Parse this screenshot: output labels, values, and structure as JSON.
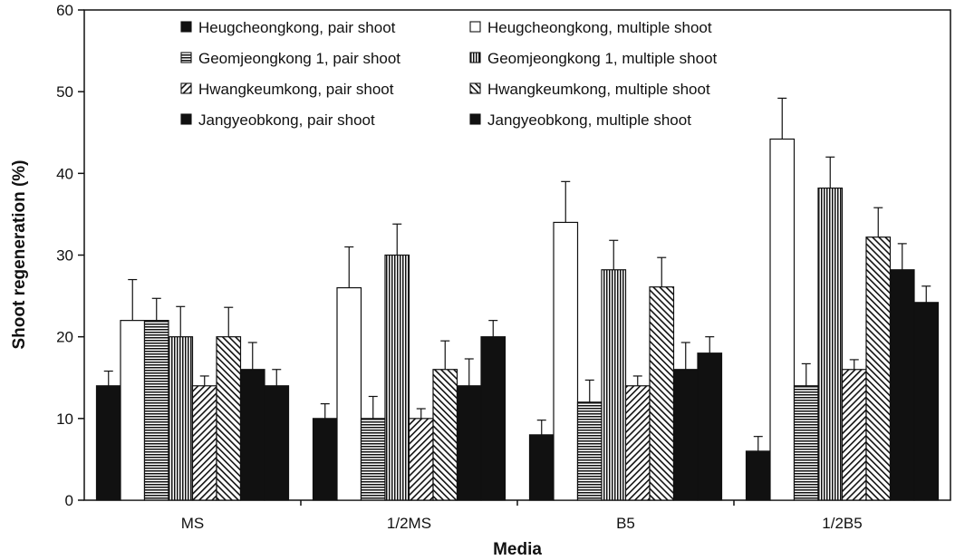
{
  "chart_data": {
    "type": "bar",
    "xlabel": "Media",
    "ylabel": "Shoot regeneration (%)",
    "ylim": [
      0,
      60
    ],
    "yticks": [
      "0",
      "10",
      "20",
      "30",
      "40",
      "50",
      "60"
    ],
    "categories": [
      "MS",
      "1/2MS",
      "B5",
      "1/2B5"
    ],
    "legend_position": "top-center",
    "grid": false,
    "series": [
      {
        "name": "Heugcheongkong, pair shoot",
        "pattern": "solid-black",
        "values": [
          14,
          10,
          8,
          6
        ],
        "errors": [
          1.8,
          1.8,
          1.8,
          1.8
        ]
      },
      {
        "name": "Heugcheongkong, multiple shoot",
        "pattern": "white",
        "values": [
          22,
          26,
          34,
          44.2
        ],
        "errors": [
          5,
          5,
          5,
          5
        ]
      },
      {
        "name": "Geomjeongkong 1, pair shoot",
        "pattern": "horizontal-lines",
        "values": [
          22,
          10,
          12,
          14
        ],
        "errors": [
          2.7,
          2.7,
          2.7,
          2.7
        ]
      },
      {
        "name": "Geomjeongkong 1, multiple shoot",
        "pattern": "vertical-lines",
        "values": [
          20,
          30,
          28.2,
          38.2
        ],
        "errors": [
          3.7,
          3.8,
          3.6,
          3.8
        ]
      },
      {
        "name": "Hwangkeumkong, pair shoot",
        "pattern": "diagonal-up",
        "values": [
          14,
          10,
          14,
          16
        ],
        "errors": [
          1.2,
          1.2,
          1.2,
          1.2
        ]
      },
      {
        "name": "Hwangkeumkong, multiple shoot",
        "pattern": "diagonal-down",
        "values": [
          20,
          16,
          26.1,
          32.2
        ],
        "errors": [
          3.6,
          3.5,
          3.6,
          3.6
        ]
      },
      {
        "name": "Jangyeobkong, pair shoot",
        "pattern": "solid-black",
        "values": [
          16,
          14,
          16,
          28.2
        ],
        "errors": [
          3.3,
          3.3,
          3.3,
          3.2
        ]
      },
      {
        "name": "Jangyeobkong, multiple shoot",
        "pattern": "solid-black",
        "values": [
          14,
          20,
          18,
          24.2
        ],
        "errors": [
          2,
          2,
          2,
          2
        ]
      }
    ]
  }
}
